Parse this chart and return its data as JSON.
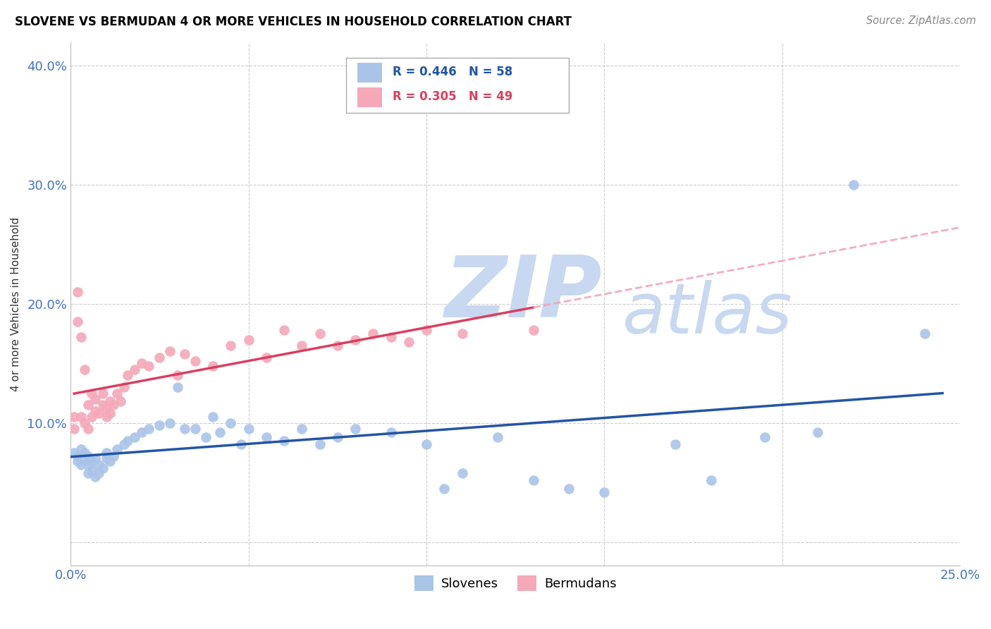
{
  "title": "SLOVENE VS BERMUDAN 4 OR MORE VEHICLES IN HOUSEHOLD CORRELATION CHART",
  "source": "Source: ZipAtlas.com",
  "tick_color": "#4472c4",
  "ylabel": "4 or more Vehicles in Household",
  "xlim": [
    0.0,
    0.25
  ],
  "ylim": [
    -0.02,
    0.42
  ],
  "xtick_positions": [
    0.0,
    0.05,
    0.1,
    0.15,
    0.2,
    0.25
  ],
  "xtick_labels": [
    "0.0%",
    "",
    "",
    "",
    "",
    "25.0%"
  ],
  "ytick_positions": [
    0.0,
    0.1,
    0.2,
    0.3,
    0.4
  ],
  "ytick_labels": [
    "",
    "10.0%",
    "20.0%",
    "30.0%",
    "40.0%"
  ],
  "grid_color": "#cccccc",
  "slovene_color": "#aac4e8",
  "bermudan_color": "#f4a8b8",
  "slovene_line_color": "#2255a4",
  "bermudan_line_color": "#d84060",
  "bermudan_dash_color": "#f0a0b8",
  "watermark_zip": "ZIP",
  "watermark_atlas": "atlas",
  "watermark_color": "#c8d8f0",
  "slovene_R": "0.446",
  "slovene_N": "58",
  "bermudan_R": "0.305",
  "bermudan_N": "49",
  "slovene_x": [
    0.001,
    0.002,
    0.002,
    0.003,
    0.003,
    0.004,
    0.004,
    0.005,
    0.005,
    0.005,
    0.006,
    0.006,
    0.007,
    0.007,
    0.008,
    0.008,
    0.009,
    0.01,
    0.01,
    0.011,
    0.012,
    0.013,
    0.015,
    0.016,
    0.018,
    0.02,
    0.022,
    0.025,
    0.028,
    0.03,
    0.032,
    0.035,
    0.038,
    0.04,
    0.042,
    0.045,
    0.048,
    0.05,
    0.055,
    0.06,
    0.065,
    0.07,
    0.075,
    0.08,
    0.09,
    0.1,
    0.105,
    0.11,
    0.12,
    0.13,
    0.14,
    0.15,
    0.17,
    0.18,
    0.195,
    0.21,
    0.22,
    0.24
  ],
  "slovene_y": [
    0.075,
    0.072,
    0.068,
    0.065,
    0.078,
    0.07,
    0.075,
    0.058,
    0.065,
    0.072,
    0.06,
    0.068,
    0.055,
    0.07,
    0.058,
    0.065,
    0.062,
    0.07,
    0.075,
    0.068,
    0.072,
    0.078,
    0.082,
    0.085,
    0.088,
    0.092,
    0.095,
    0.098,
    0.1,
    0.13,
    0.095,
    0.095,
    0.088,
    0.105,
    0.092,
    0.1,
    0.082,
    0.095,
    0.088,
    0.085,
    0.095,
    0.082,
    0.088,
    0.095,
    0.092,
    0.082,
    0.045,
    0.058,
    0.088,
    0.052,
    0.045,
    0.042,
    0.082,
    0.052,
    0.088,
    0.092,
    0.3,
    0.175
  ],
  "bermudan_x": [
    0.001,
    0.001,
    0.002,
    0.002,
    0.003,
    0.003,
    0.004,
    0.004,
    0.005,
    0.005,
    0.006,
    0.006,
    0.007,
    0.007,
    0.008,
    0.009,
    0.009,
    0.01,
    0.01,
    0.011,
    0.011,
    0.012,
    0.013,
    0.014,
    0.015,
    0.016,
    0.018,
    0.02,
    0.022,
    0.025,
    0.028,
    0.03,
    0.032,
    0.035,
    0.04,
    0.045,
    0.05,
    0.055,
    0.06,
    0.065,
    0.07,
    0.075,
    0.08,
    0.085,
    0.09,
    0.095,
    0.1,
    0.11,
    0.13
  ],
  "bermudan_y": [
    0.105,
    0.095,
    0.21,
    0.185,
    0.105,
    0.172,
    0.1,
    0.145,
    0.095,
    0.115,
    0.105,
    0.125,
    0.11,
    0.12,
    0.108,
    0.115,
    0.125,
    0.112,
    0.105,
    0.118,
    0.108,
    0.115,
    0.125,
    0.118,
    0.13,
    0.14,
    0.145,
    0.15,
    0.148,
    0.155,
    0.16,
    0.14,
    0.158,
    0.152,
    0.148,
    0.165,
    0.17,
    0.155,
    0.178,
    0.165,
    0.175,
    0.165,
    0.17,
    0.175,
    0.172,
    0.168,
    0.178,
    0.175,
    0.178
  ]
}
